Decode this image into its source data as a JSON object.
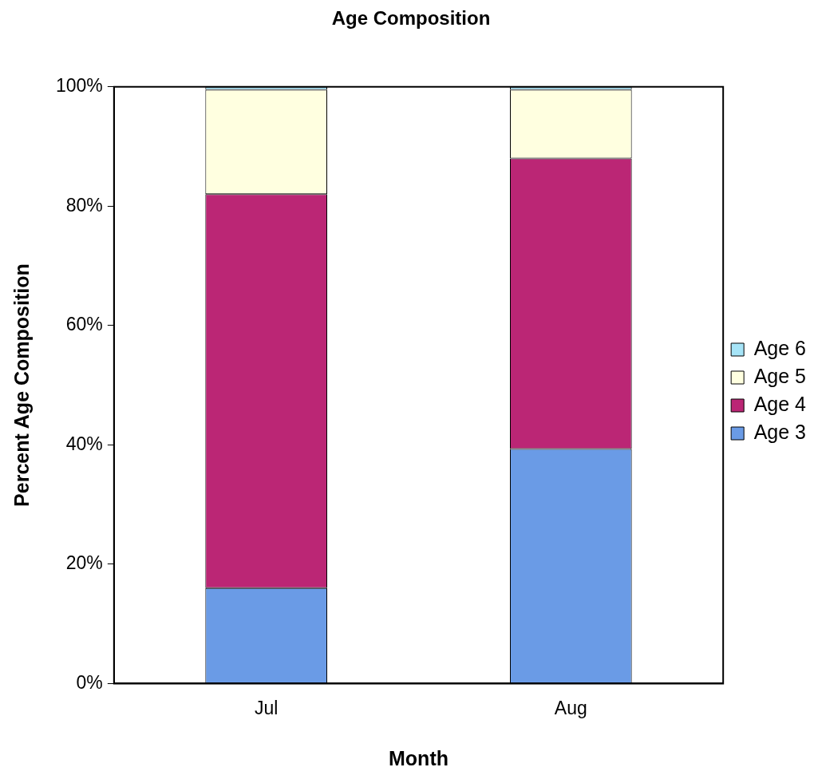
{
  "chart_data": {
    "type": "bar",
    "title": "Age Composition",
    "xlabel": "Month",
    "ylabel": "Percent Age Composition",
    "categories": [
      "Jul",
      "Aug"
    ],
    "stacked": true,
    "legend": "right",
    "grid": false,
    "ylim": [
      0,
      100
    ],
    "yticks": [
      {
        "value": 0,
        "label": "0%"
      },
      {
        "value": 20,
        "label": "20%"
      },
      {
        "value": 40,
        "label": "40%"
      },
      {
        "value": 60,
        "label": "60%"
      },
      {
        "value": 80,
        "label": "80%"
      },
      {
        "value": 100,
        "label": "100%"
      }
    ],
    "series": [
      {
        "name": "Age 3",
        "color": "#6a9be6",
        "values": [
          16,
          39.3
        ]
      },
      {
        "name": "Age 4",
        "color": "#bb2675",
        "values": [
          66,
          48.7
        ]
      },
      {
        "name": "Age 5",
        "color": "#ffffe0",
        "values": [
          17.5,
          11.5
        ]
      },
      {
        "name": "Age 6",
        "color": "#a6e4f7",
        "values": [
          0.5,
          0.5
        ]
      }
    ]
  }
}
